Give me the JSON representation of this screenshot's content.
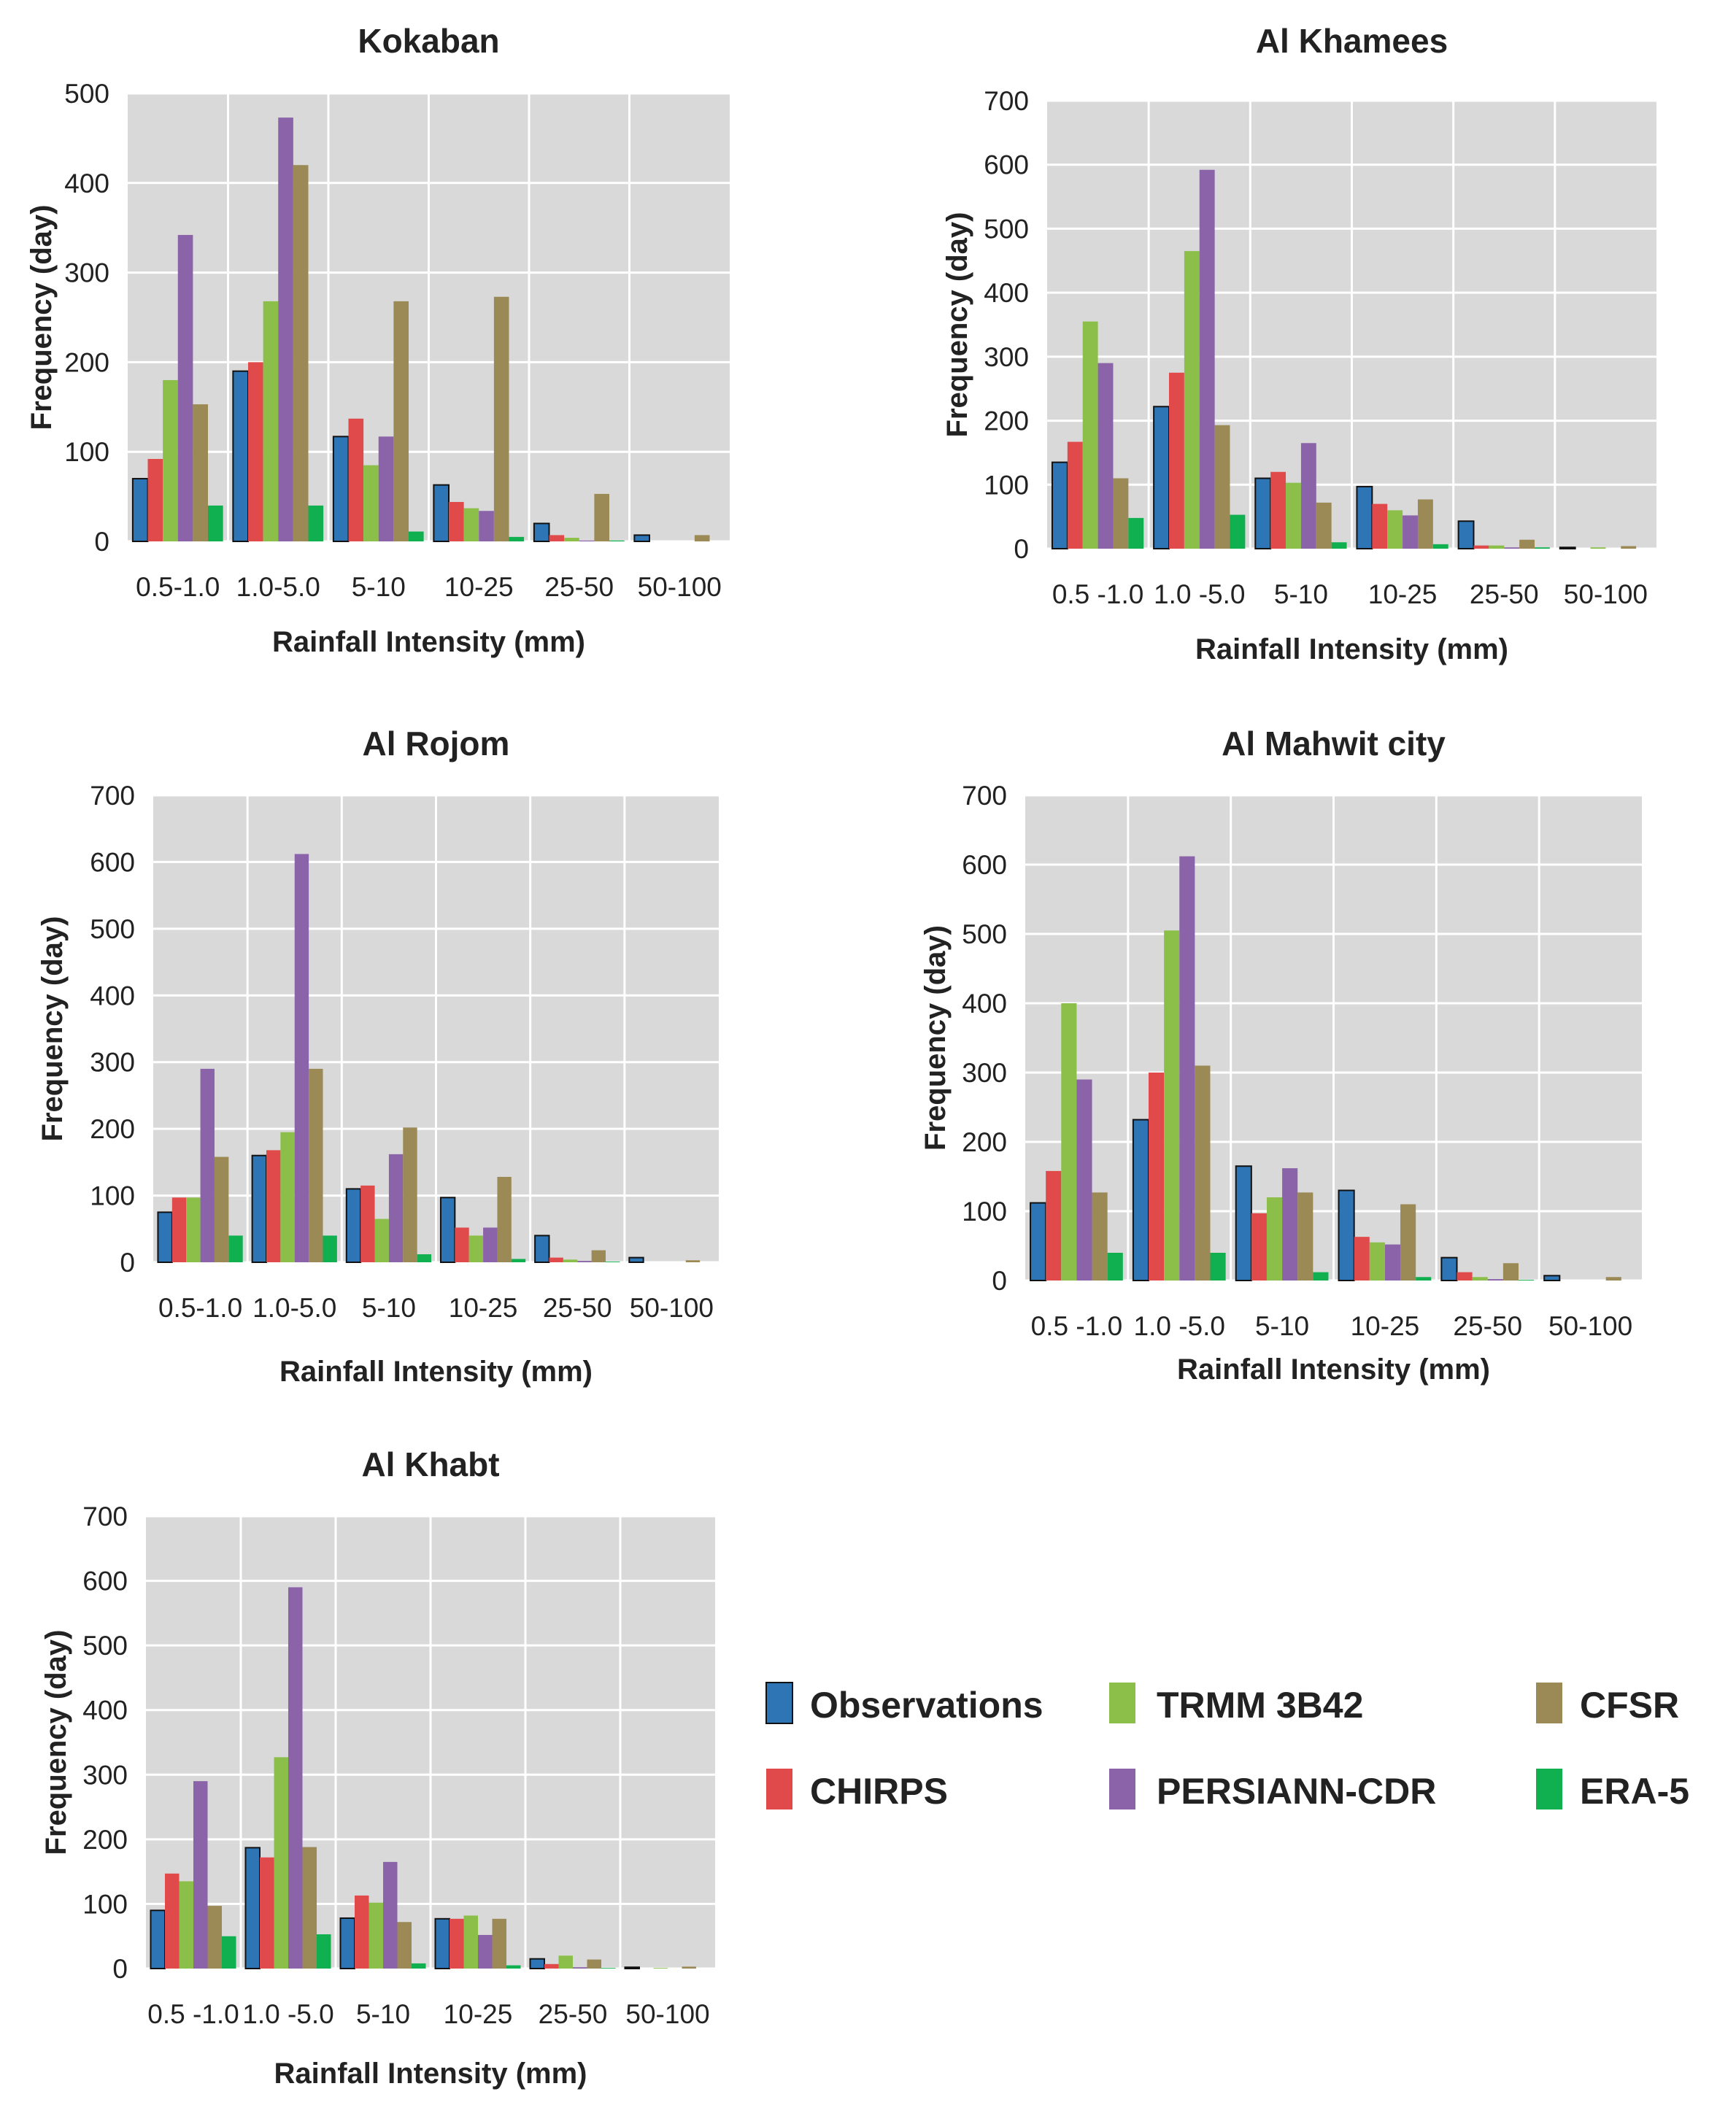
{
  "colors": {
    "plot_bg": "#d9d9d9",
    "grid": "#ffffff",
    "series": [
      "#2e75b6",
      "#e04a4a",
      "#8cbf4a",
      "#8b63a9",
      "#9c8a56",
      "#10b050"
    ]
  },
  "legend": {
    "items": [
      {
        "label": "Observations",
        "color": "#2e75b6"
      },
      {
        "label": "TRMM 3B42",
        "color": "#8cbf4a"
      },
      {
        "label": "CFSR",
        "color": "#9c8a56"
      },
      {
        "label": "CHIRPS",
        "color": "#e04a4a"
      },
      {
        "label": "PERSIANN-CDR",
        "color": "#8b63a9"
      },
      {
        "label": "ERA-5",
        "color": "#10b050"
      }
    ]
  },
  "chart_data": [
    {
      "type": "bar",
      "title": "Kokaban",
      "xlabel": "Rainfall Intensity (mm)",
      "ylabel": "Frequency (day)",
      "ylim": [
        0,
        500
      ],
      "yticks": [
        0,
        100,
        200,
        300,
        400,
        500
      ],
      "categories": [
        "0.5-1.0",
        "1.0-5.0",
        "5-10",
        "10-25",
        "25-50",
        "50-100"
      ],
      "series": [
        {
          "name": "Observations",
          "values": [
            70,
            190,
            117,
            63,
            20,
            7
          ]
        },
        {
          "name": "CHIRPS",
          "values": [
            92,
            200,
            137,
            44,
            7,
            0
          ]
        },
        {
          "name": "TRMM 3B42",
          "values": [
            180,
            268,
            85,
            37,
            4,
            0
          ]
        },
        {
          "name": "PERSIANN-CDR",
          "values": [
            342,
            473,
            117,
            34,
            1,
            0
          ]
        },
        {
          "name": "CFSR",
          "values": [
            153,
            420,
            268,
            273,
            53,
            7
          ]
        },
        {
          "name": "ERA-5",
          "values": [
            40,
            40,
            11,
            5,
            1,
            0
          ]
        }
      ]
    },
    {
      "type": "bar",
      "title": "Al Khamees",
      "xlabel": "Rainfall Intensity (mm)",
      "ylabel": "Frequency (day)",
      "ylim": [
        0,
        700
      ],
      "yticks": [
        0,
        100,
        200,
        300,
        400,
        500,
        600,
        700
      ],
      "categories": [
        "0.5 -1.0",
        "1.0 -5.0",
        "5-10",
        "10-25",
        "25-50",
        "50-100"
      ],
      "series": [
        {
          "name": "Observations",
          "values": [
            135,
            222,
            110,
            97,
            43,
            2
          ]
        },
        {
          "name": "CHIRPS",
          "values": [
            167,
            275,
            120,
            70,
            5,
            0
          ]
        },
        {
          "name": "TRMM 3B42",
          "values": [
            355,
            465,
            103,
            60,
            5,
            2
          ]
        },
        {
          "name": "PERSIANN-CDR",
          "values": [
            290,
            592,
            165,
            52,
            2,
            0
          ]
        },
        {
          "name": "CFSR",
          "values": [
            110,
            193,
            72,
            77,
            14,
            4
          ]
        },
        {
          "name": "ERA-5",
          "values": [
            48,
            53,
            10,
            7,
            2,
            0
          ]
        }
      ]
    },
    {
      "type": "bar",
      "title": "Al Rojom",
      "xlabel": "Rainfall Intensity (mm)",
      "ylabel": "Frequency (day)",
      "ylim": [
        0,
        700
      ],
      "yticks": [
        0,
        100,
        200,
        300,
        400,
        500,
        600,
        700
      ],
      "categories": [
        "0.5-1.0",
        "1.0-5.0",
        "5-10",
        "10-25",
        "25-50",
        "50-100"
      ],
      "series": [
        {
          "name": "Observations",
          "values": [
            75,
            160,
            110,
            97,
            40,
            7
          ]
        },
        {
          "name": "CHIRPS",
          "values": [
            97,
            168,
            115,
            52,
            7,
            0
          ]
        },
        {
          "name": "TRMM 3B42",
          "values": [
            97,
            195,
            65,
            40,
            4,
            0
          ]
        },
        {
          "name": "PERSIANN-CDR",
          "values": [
            290,
            612,
            162,
            52,
            2,
            0
          ]
        },
        {
          "name": "CFSR",
          "values": [
            158,
            290,
            202,
            128,
            18,
            3
          ]
        },
        {
          "name": "ERA-5",
          "values": [
            40,
            40,
            12,
            5,
            1,
            0
          ]
        }
      ]
    },
    {
      "type": "bar",
      "title": "Al Mahwit city",
      "xlabel": "Rainfall Intensity (mm)",
      "ylabel": "Frequency (day)",
      "ylim": [
        0,
        700
      ],
      "yticks": [
        0,
        100,
        200,
        300,
        400,
        500,
        600,
        700
      ],
      "categories": [
        "0.5 -1.0",
        "1.0 -5.0",
        "5-10",
        "10-25",
        "25-50",
        "50-100"
      ],
      "series": [
        {
          "name": "Observations",
          "values": [
            112,
            232,
            165,
            130,
            33,
            7
          ]
        },
        {
          "name": "CHIRPS",
          "values": [
            158,
            300,
            97,
            63,
            12,
            0
          ]
        },
        {
          "name": "TRMM 3B42",
          "values": [
            400,
            505,
            120,
            55,
            5,
            0
          ]
        },
        {
          "name": "PERSIANN-CDR",
          "values": [
            290,
            612,
            162,
            52,
            2,
            0
          ]
        },
        {
          "name": "CFSR",
          "values": [
            127,
            310,
            127,
            110,
            25,
            5
          ]
        },
        {
          "name": "ERA-5",
          "values": [
            40,
            40,
            12,
            5,
            1,
            0
          ]
        }
      ]
    },
    {
      "type": "bar",
      "title": "Al Khabt",
      "xlabel": "Rainfall Intensity (mm)",
      "ylabel": "Frequency (day)",
      "ylim": [
        0,
        700
      ],
      "yticks": [
        0,
        100,
        200,
        300,
        400,
        500,
        600,
        700
      ],
      "categories": [
        "0.5 -1.0",
        "1.0 -5.0",
        "5-10",
        "10-25",
        "25-50",
        "50-100"
      ],
      "series": [
        {
          "name": "Observations",
          "values": [
            90,
            187,
            78,
            77,
            15,
            2
          ]
        },
        {
          "name": "CHIRPS",
          "values": [
            147,
            172,
            113,
            77,
            7,
            0
          ]
        },
        {
          "name": "TRMM 3B42",
          "values": [
            135,
            327,
            102,
            82,
            20,
            1
          ]
        },
        {
          "name": "PERSIANN-CDR",
          "values": [
            290,
            590,
            165,
            52,
            2,
            0
          ]
        },
        {
          "name": "CFSR",
          "values": [
            97,
            188,
            72,
            77,
            14,
            3
          ]
        },
        {
          "name": "ERA-5",
          "values": [
            50,
            53,
            8,
            5,
            1,
            0
          ]
        }
      ]
    }
  ]
}
